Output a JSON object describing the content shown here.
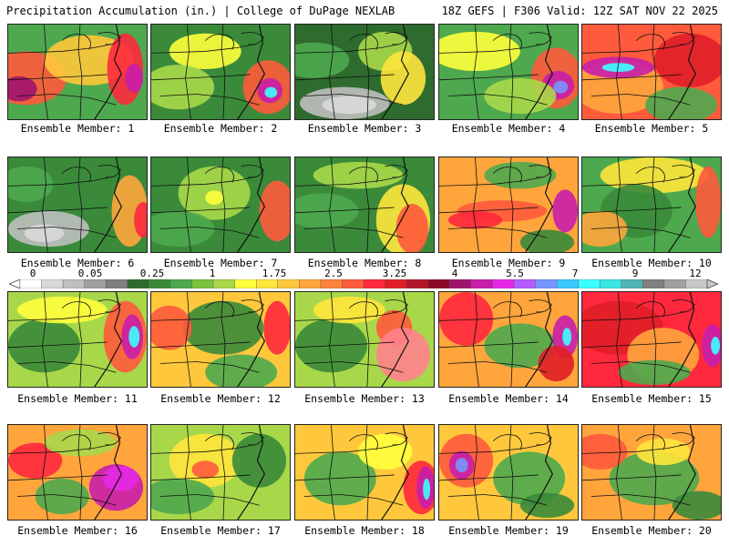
{
  "header": {
    "left": "Precipitation Accumulation (in.) | College of DuPage NEXLAB",
    "right": "18Z GEFS | F306 Valid: 12Z SAT NOV 22 2025"
  },
  "legend": {
    "labels": [
      "0",
      "0.05",
      "0.25",
      "1",
      "1.75",
      "2.5",
      "3.25",
      "4",
      "5.5",
      "7",
      "9",
      "12"
    ],
    "colors": [
      "#ffffff",
      "#d9d9d9",
      "#bfbfbf",
      "#9e9e9e",
      "#7f7f7f",
      "#2e6b2e",
      "#3a8a3a",
      "#4ea84e",
      "#7cc23c",
      "#a8d84a",
      "#ffff3c",
      "#ffe63c",
      "#ffc83c",
      "#ffa53c",
      "#ff823c",
      "#ff5a3c",
      "#ff283c",
      "#e01e28",
      "#b41428",
      "#8c0a28",
      "#a0146e",
      "#c81eaa",
      "#e628e6",
      "#b45aff",
      "#7896ff",
      "#3cc8ff",
      "#3cffff",
      "#3ce6e6",
      "#50b4b4",
      "#808080",
      "#a0a0a0",
      "#c8c8c8"
    ]
  },
  "members": [
    {
      "label": "Ensemble Member: 1"
    },
    {
      "label": "Ensemble Member: 2"
    },
    {
      "label": "Ensemble Member: 3"
    },
    {
      "label": "Ensemble Member: 4"
    },
    {
      "label": "Ensemble Member: 5"
    },
    {
      "label": "Ensemble Member: 6"
    },
    {
      "label": "Ensemble Member: 7"
    },
    {
      "label": "Ensemble Member: 8"
    },
    {
      "label": "Ensemble Member: 9"
    },
    {
      "label": "Ensemble Member: 10"
    },
    {
      "label": "Ensemble Member: 11"
    },
    {
      "label": "Ensemble Member: 12"
    },
    {
      "label": "Ensemble Member: 13"
    },
    {
      "label": "Ensemble Member: 14"
    },
    {
      "label": "Ensemble Member: 15"
    },
    {
      "label": "Ensemble Member: 16"
    },
    {
      "label": "Ensemble Member: 17"
    },
    {
      "label": "Ensemble Member: 18"
    },
    {
      "label": "Ensemble Member: 19"
    },
    {
      "label": "Ensemble Member: 20"
    }
  ]
}
